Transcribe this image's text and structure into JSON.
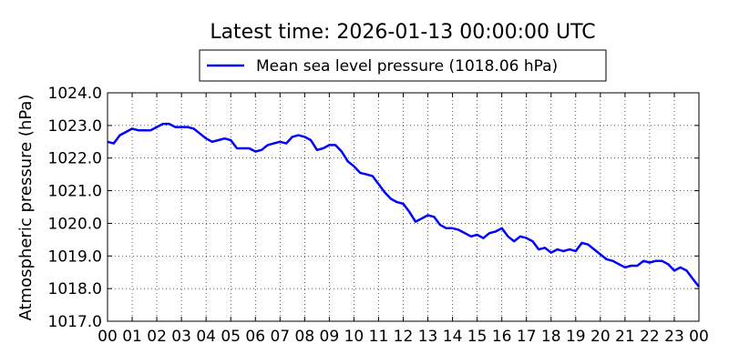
{
  "chart_data": {
    "type": "line",
    "title": "Latest time: 2026-01-13 00:00:00 UTC",
    "xlabel": "",
    "ylabel": "Atmospheric pressure (hPa)",
    "x_unit": "hour",
    "xlim": [
      0,
      24
    ],
    "ylim": [
      1017.0,
      1024.0
    ],
    "x_ticks": [
      0,
      1,
      2,
      3,
      4,
      5,
      6,
      7,
      8,
      9,
      10,
      11,
      12,
      13,
      14,
      15,
      16,
      17,
      18,
      19,
      20,
      21,
      22,
      23,
      24
    ],
    "x_tick_labels": [
      "00",
      "01",
      "02",
      "03",
      "04",
      "05",
      "06",
      "07",
      "08",
      "09",
      "10",
      "11",
      "12",
      "13",
      "14",
      "15",
      "16",
      "17",
      "18",
      "19",
      "20",
      "21",
      "22",
      "23",
      "00"
    ],
    "y_ticks": [
      1017.0,
      1018.0,
      1019.0,
      1020.0,
      1021.0,
      1022.0,
      1023.0,
      1024.0
    ],
    "y_tick_labels": [
      "1017.0",
      "1018.0",
      "1019.0",
      "1020.0",
      "1021.0",
      "1022.0",
      "1023.0",
      "1024.0"
    ],
    "grid": true,
    "legend_position": "top",
    "series": [
      {
        "name": "Mean sea level pressure (1018.06 hPa)",
        "color": "#0000ff",
        "x": [
          0,
          0.25,
          0.5,
          0.75,
          1,
          1.25,
          1.5,
          1.75,
          2,
          2.25,
          2.5,
          2.75,
          3,
          3.25,
          3.5,
          3.75,
          4,
          4.25,
          4.5,
          4.75,
          5,
          5.25,
          5.5,
          5.75,
          6,
          6.25,
          6.5,
          6.75,
          7,
          7.25,
          7.5,
          7.75,
          8,
          8.25,
          8.5,
          8.75,
          9,
          9.25,
          9.5,
          9.75,
          10,
          10.25,
          10.5,
          10.75,
          11,
          11.25,
          11.5,
          11.75,
          12,
          12.25,
          12.5,
          12.75,
          13,
          13.25,
          13.5,
          13.75,
          14,
          14.25,
          14.5,
          14.75,
          15,
          15.25,
          15.5,
          15.75,
          16,
          16.25,
          16.5,
          16.75,
          17,
          17.25,
          17.5,
          17.75,
          18,
          18.25,
          18.5,
          18.75,
          19,
          19.25,
          19.5,
          19.75,
          20,
          20.25,
          20.5,
          20.75,
          21,
          21.25,
          21.5,
          21.75,
          22,
          22.25,
          22.5,
          22.75,
          23,
          23.25,
          23.5,
          23.75,
          24
        ],
        "values": [
          1022.5,
          1022.45,
          1022.7,
          1022.8,
          1022.9,
          1022.85,
          1022.85,
          1022.85,
          1022.95,
          1023.05,
          1023.05,
          1022.95,
          1022.95,
          1022.95,
          1022.9,
          1022.75,
          1022.6,
          1022.5,
          1022.55,
          1022.6,
          1022.55,
          1022.3,
          1022.3,
          1022.3,
          1022.2,
          1022.25,
          1022.4,
          1022.45,
          1022.5,
          1022.45,
          1022.65,
          1022.7,
          1022.65,
          1022.55,
          1022.25,
          1022.3,
          1022.4,
          1022.4,
          1022.2,
          1021.9,
          1021.75,
          1021.55,
          1021.5,
          1021.45,
          1021.2,
          1020.95,
          1020.75,
          1020.65,
          1020.6,
          1020.35,
          1020.05,
          1020.15,
          1020.25,
          1020.2,
          1019.95,
          1019.85,
          1019.85,
          1019.8,
          1019.7,
          1019.6,
          1019.65,
          1019.55,
          1019.7,
          1019.75,
          1019.85,
          1019.6,
          1019.45,
          1019.6,
          1019.55,
          1019.45,
          1019.2,
          1019.25,
          1019.1,
          1019.2,
          1019.15,
          1019.2,
          1019.15,
          1019.4,
          1019.35,
          1019.2,
          1019.05,
          1018.9,
          1018.85,
          1018.75,
          1018.65,
          1018.7,
          1018.7,
          1018.85,
          1018.8,
          1018.85,
          1018.85,
          1018.75,
          1018.55,
          1018.65,
          1018.55,
          1018.3,
          1018.06
        ]
      }
    ]
  }
}
